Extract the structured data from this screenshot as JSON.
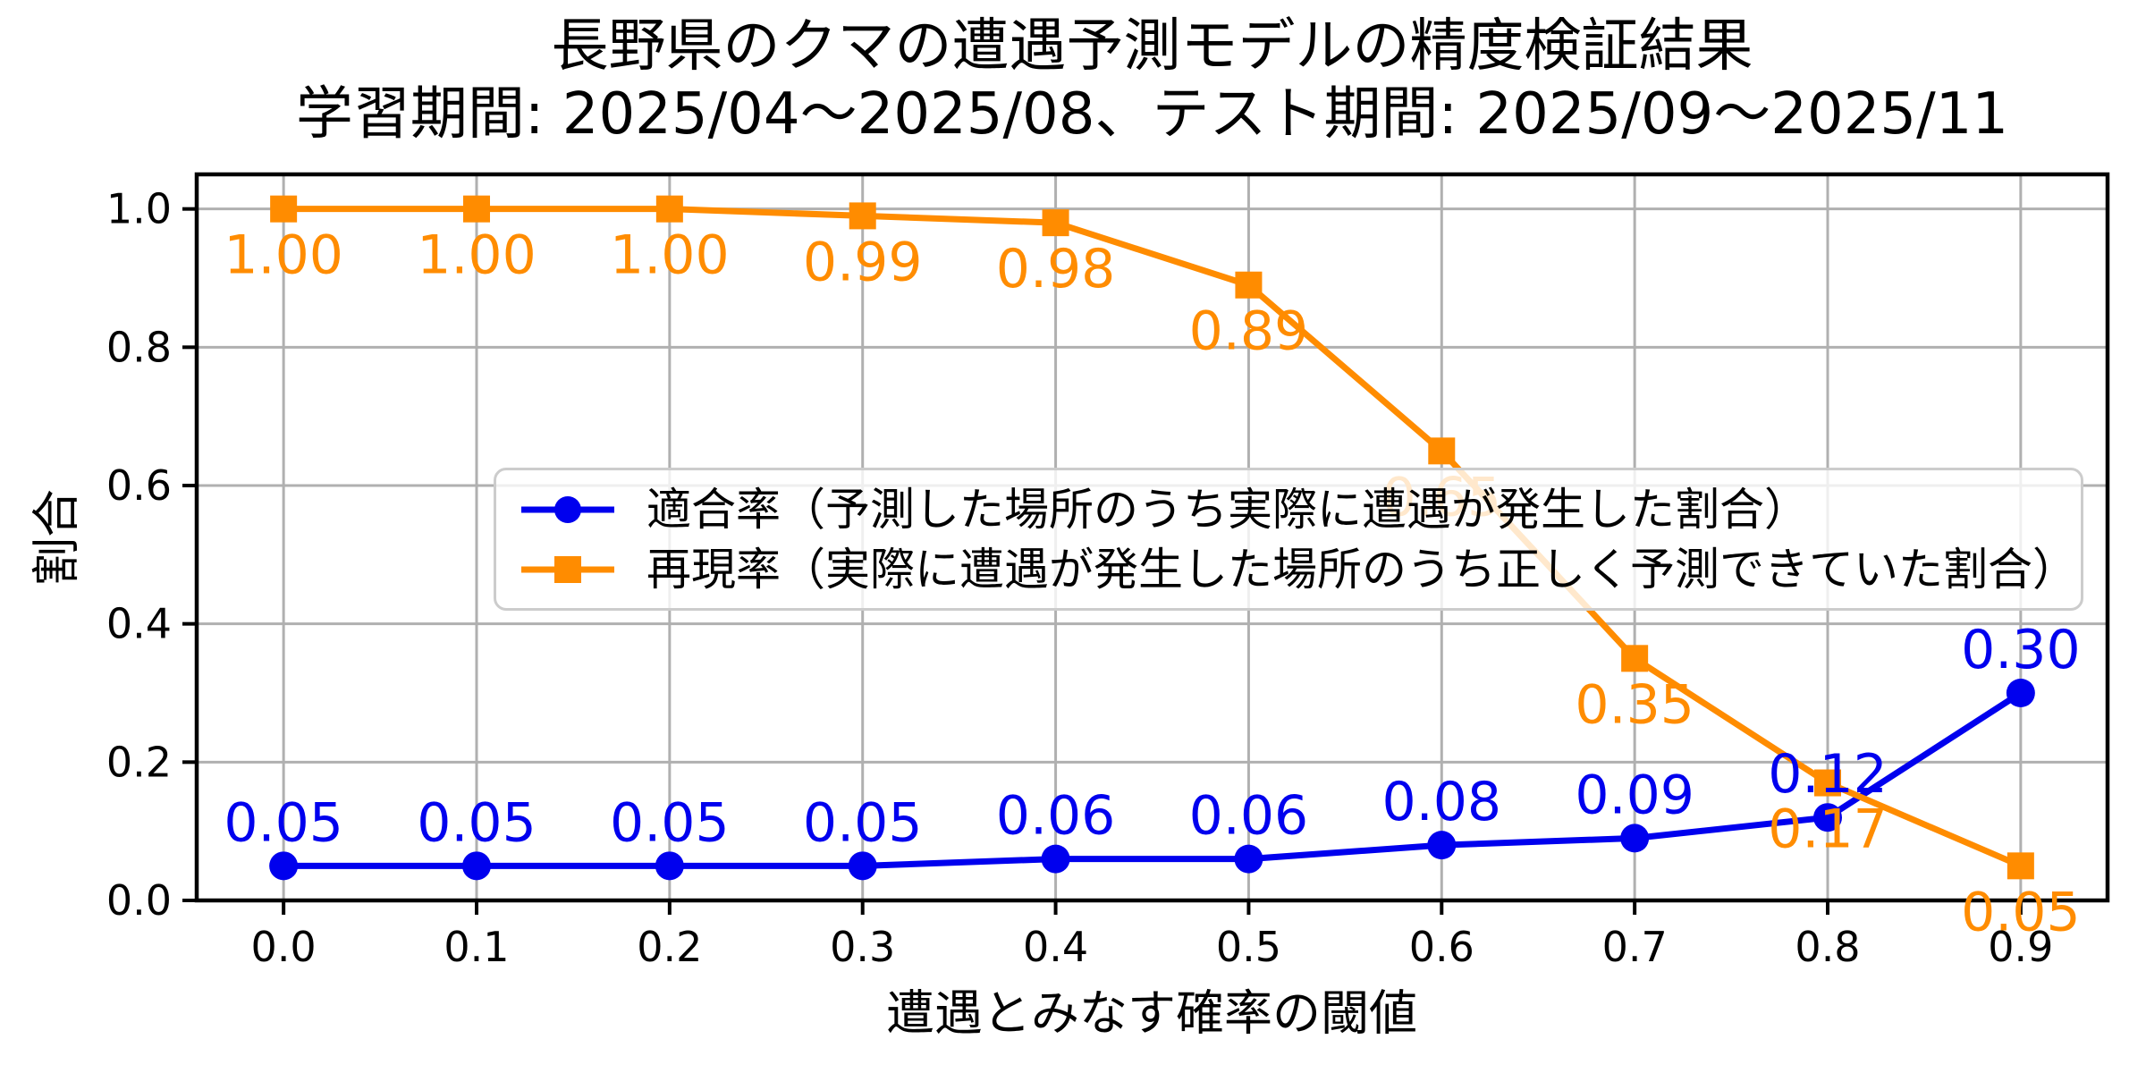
{
  "title": {
    "line1": "長野県のクマの遭遇予測モデルの精度検証結果",
    "line2": "学習期間: 2025/04〜2025/08、テスト期間: 2025/09〜2025/11"
  },
  "chart_data": {
    "type": "line",
    "x": [
      0.0,
      0.1,
      0.2,
      0.3,
      0.4,
      0.5,
      0.6,
      0.7,
      0.8,
      0.9
    ],
    "series": [
      {
        "name": "適合率（予測した場所のうち実際に遭遇が発生した割合）",
        "color": "#0000EE",
        "marker": "circle",
        "label_position": "above",
        "values": [
          0.05,
          0.05,
          0.05,
          0.05,
          0.06,
          0.06,
          0.08,
          0.09,
          0.12,
          0.3
        ],
        "labels": [
          "0.05",
          "0.05",
          "0.05",
          "0.05",
          "0.06",
          "0.06",
          "0.08",
          "0.09",
          "0.12",
          "0.30"
        ]
      },
      {
        "name": "再現率（実際に遭遇が発生した場所のうち正しく予測できていた割合）",
        "color": "#FF8C00",
        "marker": "square",
        "label_position": "below",
        "values": [
          1.0,
          1.0,
          1.0,
          0.99,
          0.98,
          0.89,
          0.65,
          0.35,
          0.17,
          0.05
        ],
        "labels": [
          "1.00",
          "1.00",
          "1.00",
          "0.99",
          "0.98",
          "0.89",
          "0.65",
          "0.35",
          "0.17",
          "0.05"
        ]
      }
    ],
    "xlabel": "遭遇とみなす確率の閾値",
    "ylabel": "割合",
    "xticks": [
      "0.0",
      "0.1",
      "0.2",
      "0.3",
      "0.4",
      "0.5",
      "0.6",
      "0.7",
      "0.8",
      "0.9"
    ],
    "yticks": [
      "0.0",
      "0.2",
      "0.4",
      "0.6",
      "0.8",
      "1.0"
    ],
    "xlim": [
      -0.045,
      0.945
    ],
    "ylim": [
      0,
      1.05
    ],
    "grid": true,
    "grid_color": "#B0B0B0",
    "axis_color": "#000000",
    "legend": {
      "position": "center-inside",
      "border_color": "#CCCCCC",
      "background": "rgba(255,255,255,0.8)"
    }
  }
}
